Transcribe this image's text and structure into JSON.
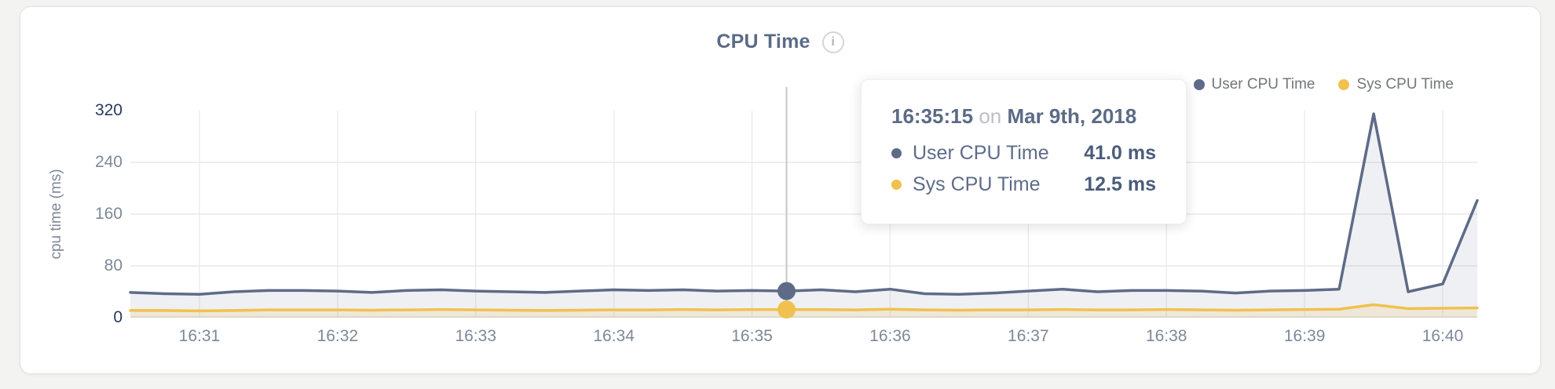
{
  "header": {
    "info_glyph": "i"
  },
  "legend": {
    "items": [
      {
        "label": "User CPU Time",
        "color": "#5e6b88"
      },
      {
        "label": "Sys CPU Time",
        "color": "#f0c14e"
      }
    ]
  },
  "tooltip": {
    "time": "16:35:15",
    "connector": "on",
    "date": "Mar 9th, 2018",
    "rows": [
      {
        "label": "User CPU Time",
        "value": "41.0 ms",
        "color": "#5e6b88"
      },
      {
        "label": "Sys CPU Time",
        "value": "12.5 ms",
        "color": "#f0c14e"
      }
    ]
  },
  "chart_data": {
    "type": "area",
    "title": "CPU Time",
    "ylabel": "cpu time (ms)",
    "ylim": [
      0,
      320
    ],
    "yticks": [
      0,
      80,
      160,
      240,
      320
    ],
    "grid": true,
    "legend_position": "top-right",
    "x_start": "16:30:30",
    "interval_sec": 15,
    "span_sec": 585,
    "xticks": [
      {
        "label": "16:31",
        "t": 30
      },
      {
        "label": "16:32",
        "t": 90
      },
      {
        "label": "16:33",
        "t": 150
      },
      {
        "label": "16:34",
        "t": 210
      },
      {
        "label": "16:35",
        "t": 270
      },
      {
        "label": "16:36",
        "t": 330
      },
      {
        "label": "16:37",
        "t": 390
      },
      {
        "label": "16:38",
        "t": 450
      },
      {
        "label": "16:39",
        "t": 510
      },
      {
        "label": "16:40",
        "t": 570
      }
    ],
    "series": [
      {
        "name": "User CPU Time",
        "color": "#5e6b88",
        "fill": "rgba(94,107,136,0.10)",
        "values": [
          39,
          37,
          36,
          40,
          42,
          42,
          41,
          39,
          42,
          43,
          41,
          40,
          39,
          41,
          43,
          42,
          43,
          41,
          42,
          41,
          43,
          40,
          44,
          37,
          36,
          38,
          41,
          44,
          40,
          42,
          42,
          41,
          38,
          41,
          42,
          44,
          315,
          40,
          52,
          181
        ]
      },
      {
        "name": "Sys CPU Time",
        "color": "#f0c14e",
        "fill": "rgba(240,193,78,0.16)",
        "values": [
          11,
          11,
          10.5,
          11,
          12,
          12,
          12,
          11.5,
          12,
          12.5,
          12,
          11.5,
          11,
          11.5,
          12,
          12,
          12.5,
          12,
          12.5,
          12.5,
          12.5,
          12,
          13,
          12,
          11.5,
          12,
          12,
          12.5,
          12,
          12,
          12.5,
          12,
          11.5,
          12,
          12.5,
          13,
          20,
          14,
          14.5,
          15
        ]
      }
    ],
    "hover": {
      "index": 19,
      "time": "16:35:15"
    }
  }
}
